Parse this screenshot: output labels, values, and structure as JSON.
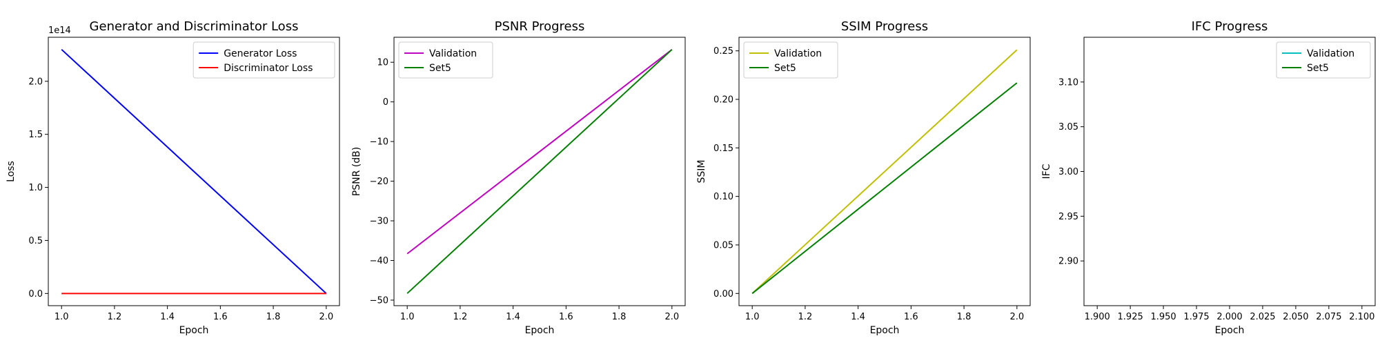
{
  "chart_data": [
    {
      "type": "line",
      "title": "Generator and Discriminator Loss",
      "xlabel": "Epoch",
      "ylabel": "Loss",
      "xlim": [
        0.95,
        2.05
      ],
      "ylim": [
        -11500000000000.0,
        241500000000000.0
      ],
      "xticks": [
        1.0,
        1.2,
        1.4,
        1.6,
        1.8,
        2.0
      ],
      "xtick_labels": [
        "1.0",
        "1.2",
        "1.4",
        "1.6",
        "1.8",
        "2.0"
      ],
      "yticks": [
        0,
        50000000000000.0,
        100000000000000.0,
        150000000000000.0,
        200000000000000.0
      ],
      "ytick_labels": [
        "0.0",
        "0.5",
        "1.0",
        "1.5",
        "2.0"
      ],
      "y_offset_label": "1e14",
      "legend": "top-right",
      "series": [
        {
          "name": "Generator Loss",
          "color": "#0000ff",
          "x": [
            1,
            2
          ],
          "y": [
            230000000000000.0,
            0
          ]
        },
        {
          "name": "Discriminator Loss",
          "color": "#ff0000",
          "x": [
            1,
            2
          ],
          "y": [
            0,
            0
          ]
        }
      ]
    },
    {
      "type": "line",
      "title": "PSNR Progress",
      "xlabel": "Epoch",
      "ylabel": "PSNR (dB)",
      "xlim": [
        0.95,
        2.05
      ],
      "ylim": [
        -51.4,
        16.3
      ],
      "xticks": [
        1.0,
        1.2,
        1.4,
        1.6,
        1.8,
        2.0
      ],
      "xtick_labels": [
        "1.0",
        "1.2",
        "1.4",
        "1.6",
        "1.8",
        "2.0"
      ],
      "yticks": [
        -50,
        -40,
        -30,
        -20,
        -10,
        0,
        10
      ],
      "ytick_labels": [
        "−50",
        "−40",
        "−30",
        "−20",
        "−10",
        "0",
        "10"
      ],
      "legend": "top-left",
      "series": [
        {
          "name": "Validation",
          "color": "#bf00bf",
          "x": [
            1,
            2
          ],
          "y": [
            -38.3,
            13.2
          ]
        },
        {
          "name": "Set5",
          "color": "#008000",
          "x": [
            1,
            2
          ],
          "y": [
            -48.3,
            13.2
          ]
        }
      ]
    },
    {
      "type": "line",
      "title": "SSIM Progress",
      "xlabel": "Epoch",
      "ylabel": "SSIM",
      "xlim": [
        0.95,
        2.05
      ],
      "ylim": [
        -0.0126,
        0.264
      ],
      "xticks": [
        1.0,
        1.2,
        1.4,
        1.6,
        1.8,
        2.0
      ],
      "xtick_labels": [
        "1.0",
        "1.2",
        "1.4",
        "1.6",
        "1.8",
        "2.0"
      ],
      "yticks": [
        0,
        0.05,
        0.1,
        0.15,
        0.2,
        0.25
      ],
      "ytick_labels": [
        "0.00",
        "0.05",
        "0.10",
        "0.15",
        "0.20",
        "0.25"
      ],
      "legend": "top-left",
      "series": [
        {
          "name": "Validation",
          "color": "#bfbf00",
          "x": [
            1,
            2
          ],
          "y": [
            0,
            0.251
          ]
        },
        {
          "name": "Set5",
          "color": "#008000",
          "x": [
            1,
            2
          ],
          "y": [
            0,
            0.217
          ]
        }
      ]
    },
    {
      "type": "line",
      "title": "IFC Progress",
      "xlabel": "Epoch",
      "ylabel": "IFC",
      "xlim": [
        1.89,
        2.11
      ],
      "ylim": [
        2.85,
        3.15
      ],
      "xticks": [
        1.9,
        1.925,
        1.95,
        1.975,
        2.0,
        2.025,
        2.05,
        2.075,
        2.1
      ],
      "xtick_labels": [
        "1.900",
        "1.925",
        "1.950",
        "1.975",
        "2.000",
        "2.025",
        "2.050",
        "2.075",
        "2.100"
      ],
      "yticks": [
        2.9,
        2.95,
        3.0,
        3.05,
        3.1
      ],
      "ytick_labels": [
        "2.90",
        "2.95",
        "3.00",
        "3.05",
        "3.10"
      ],
      "legend": "top-right",
      "series": [
        {
          "name": "Validation",
          "color": "#00bfbf",
          "x": [],
          "y": []
        },
        {
          "name": "Set5",
          "color": "#008000",
          "x": [],
          "y": []
        }
      ]
    }
  ]
}
